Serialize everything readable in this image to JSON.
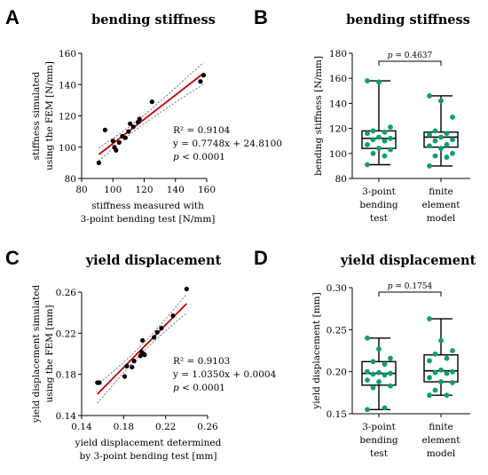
{
  "chart_data": [
    {
      "panel": "A",
      "type": "scatter",
      "title": "bending stiffness",
      "xlabel": [
        "stiffness measured with",
        "3-point bending test [N/mm]"
      ],
      "ylabel": [
        "stiffness simulated",
        "using the FEM [N/mm]"
      ],
      "xlim": [
        80,
        160
      ],
      "ylim": [
        80,
        160
      ],
      "xticks": [
        "80",
        "100",
        "120",
        "140",
        "160"
      ],
      "yticks": [
        "80",
        "100",
        "120",
        "140",
        "160"
      ],
      "points": [
        {
          "x": 91,
          "y": 90
        },
        {
          "x": 95,
          "y": 111
        },
        {
          "x": 100,
          "y": 104
        },
        {
          "x": 101,
          "y": 100
        },
        {
          "x": 102,
          "y": 98
        },
        {
          "x": 104,
          "y": 103
        },
        {
          "x": 106,
          "y": 107
        },
        {
          "x": 108,
          "y": 106
        },
        {
          "x": 110,
          "y": 110
        },
        {
          "x": 111,
          "y": 115
        },
        {
          "x": 113,
          "y": 113
        },
        {
          "x": 116,
          "y": 116
        },
        {
          "x": 117,
          "y": 118
        },
        {
          "x": 125,
          "y": 129
        },
        {
          "x": 156,
          "y": 142
        },
        {
          "x": 158,
          "y": 146
        }
      ],
      "regression": {
        "slope": 0.7748,
        "intercept": 24.81,
        "x_range": [
          91,
          158
        ]
      },
      "stats": {
        "r2": "R² = 0.9104",
        "equation": "y = 0.7748x + 24.8100",
        "p_prefix": "p",
        "p_rest": " < 0.0001"
      },
      "colors": {
        "line": "#c00000",
        "band": "#555555",
        "points": "#000000"
      }
    },
    {
      "panel": "B",
      "type": "box",
      "title": "bending stiffness",
      "ylabel": "bending stiffness [N/mm]",
      "ylim": [
        80,
        180
      ],
      "yticks": [
        "80",
        "100",
        "120",
        "140",
        "160",
        "180"
      ],
      "categories": [
        [
          "3-point",
          "bending",
          "test"
        ],
        [
          "finite",
          "element",
          "model"
        ]
      ],
      "boxes": [
        {
          "min": 91,
          "q1": 104,
          "median": 112,
          "q3": 118,
          "max": 158,
          "points": [
            158,
            157,
            121,
            118,
            117,
            116,
            113,
            112,
            111,
            110,
            107,
            104,
            103,
            100,
            98,
            91
          ]
        },
        {
          "min": 90,
          "q1": 105,
          "median": 113,
          "q3": 117,
          "max": 146,
          "points": [
            146,
            142,
            129,
            118,
            116,
            115,
            113,
            111,
            110,
            107,
            106,
            104,
            100,
            98,
            97,
            90
          ]
        }
      ],
      "significance": {
        "prefix": "p",
        "rest": " = 0.4637"
      },
      "colors": {
        "points": "#0e9e6e",
        "box": "#000000"
      }
    },
    {
      "panel": "C",
      "type": "scatter",
      "title": "yield displacement",
      "xlabel": [
        "yield displacement determined",
        "by 3-point bending test [mm]"
      ],
      "ylabel": [
        "yield displacement simulated",
        "using the FEM [mm]"
      ],
      "xlim": [
        0.14,
        0.26
      ],
      "ylim": [
        0.14,
        0.26
      ],
      "xticks": [
        "0.14",
        "0.18",
        "0.22",
        "0.26"
      ],
      "yticks": [
        "0.14",
        "0.18",
        "0.22",
        "0.26"
      ],
      "points": [
        {
          "x": 0.155,
          "y": 0.172
        },
        {
          "x": 0.157,
          "y": 0.172
        },
        {
          "x": 0.181,
          "y": 0.178
        },
        {
          "x": 0.183,
          "y": 0.188
        },
        {
          "x": 0.188,
          "y": 0.187
        },
        {
          "x": 0.19,
          "y": 0.193
        },
        {
          "x": 0.196,
          "y": 0.198
        },
        {
          "x": 0.197,
          "y": 0.202
        },
        {
          "x": 0.198,
          "y": 0.213
        },
        {
          "x": 0.199,
          "y": 0.2
        },
        {
          "x": 0.2,
          "y": 0.199
        },
        {
          "x": 0.209,
          "y": 0.216
        },
        {
          "x": 0.212,
          "y": 0.221
        },
        {
          "x": 0.216,
          "y": 0.225
        },
        {
          "x": 0.227,
          "y": 0.237
        },
        {
          "x": 0.24,
          "y": 0.263
        }
      ],
      "regression": {
        "slope": 1.035,
        "intercept": 0.0004,
        "x_range": [
          0.155,
          0.24
        ]
      },
      "stats": {
        "r2": "R² = 0.9103",
        "equation": "y = 1.0350x + 0.0004",
        "p_prefix": "p",
        "p_rest": " < 0.0001"
      },
      "colors": {
        "line": "#c00000",
        "band": "#555555",
        "points": "#000000"
      }
    },
    {
      "panel": "D",
      "type": "box",
      "title": "yield displacement",
      "ylabel": "yield displacement [mm]",
      "ylim": [
        0.15,
        0.3
      ],
      "yticks": [
        "0.15",
        "0.20",
        "0.25",
        "0.30"
      ],
      "categories": [
        [
          "3-point",
          "bending",
          "test"
        ],
        [
          "finite",
          "element",
          "model"
        ]
      ],
      "boxes": [
        {
          "min": 0.155,
          "q1": 0.184,
          "median": 0.198,
          "q3": 0.212,
          "max": 0.24,
          "points": [
            0.24,
            0.227,
            0.216,
            0.212,
            0.209,
            0.2,
            0.199,
            0.198,
            0.197,
            0.196,
            0.19,
            0.188,
            0.183,
            0.181,
            0.157,
            0.155
          ]
        },
        {
          "min": 0.172,
          "q1": 0.188,
          "median": 0.201,
          "q3": 0.22,
          "max": 0.263,
          "points": [
            0.263,
            0.237,
            0.225,
            0.221,
            0.216,
            0.213,
            0.202,
            0.2,
            0.199,
            0.198,
            0.193,
            0.188,
            0.187,
            0.178,
            0.172,
            0.172
          ]
        }
      ],
      "significance": {
        "prefix": "p",
        "rest": " = 0.1754"
      },
      "colors": {
        "points": "#0e9e6e",
        "box": "#000000"
      }
    }
  ]
}
